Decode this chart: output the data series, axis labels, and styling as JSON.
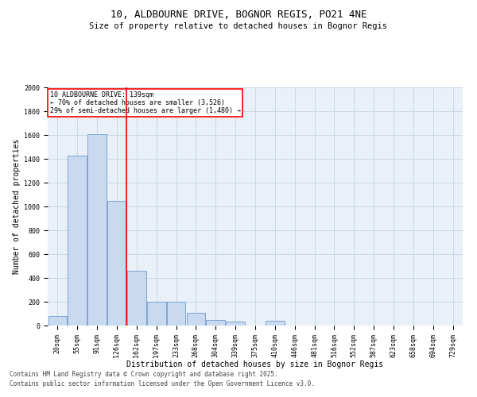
{
  "title_line1": "10, ALDBOURNE DRIVE, BOGNOR REGIS, PO21 4NE",
  "title_line2": "Size of property relative to detached houses in Bognor Regis",
  "xlabel": "Distribution of detached houses by size in Bognor Regis",
  "ylabel": "Number of detached properties",
  "categories": [
    "20sqm",
    "55sqm",
    "91sqm",
    "126sqm",
    "162sqm",
    "197sqm",
    "233sqm",
    "268sqm",
    "304sqm",
    "339sqm",
    "375sqm",
    "410sqm",
    "446sqm",
    "481sqm",
    "516sqm",
    "552sqm",
    "587sqm",
    "623sqm",
    "658sqm",
    "694sqm",
    "729sqm"
  ],
  "values": [
    80,
    1430,
    1610,
    1050,
    460,
    200,
    200,
    105,
    50,
    35,
    0,
    40,
    0,
    0,
    0,
    0,
    0,
    0,
    0,
    0,
    0
  ],
  "bar_color": "#c9d9f0",
  "bar_edge_color": "#5b8cc8",
  "vline_x": 3.5,
  "vline_color": "red",
  "annotation_text": "10 ALDBOURNE DRIVE: 139sqm\n← 70% of detached houses are smaller (3,526)\n29% of semi-detached houses are larger (1,480) →",
  "annotation_box_color": "red",
  "ylim": [
    0,
    2000
  ],
  "yticks": [
    0,
    200,
    400,
    600,
    800,
    1000,
    1200,
    1400,
    1600,
    1800,
    2000
  ],
  "grid_color": "#c8d8e8",
  "bg_color": "#eaf0f8",
  "footer_line1": "Contains HM Land Registry data © Crown copyright and database right 2025.",
  "footer_line2": "Contains public sector information licensed under the Open Government Licence v3.0.",
  "title_fontsize": 9,
  "subtitle_fontsize": 7.5,
  "tick_fontsize": 6,
  "label_fontsize": 7,
  "annotation_fontsize": 6,
  "footer_fontsize": 5.5
}
